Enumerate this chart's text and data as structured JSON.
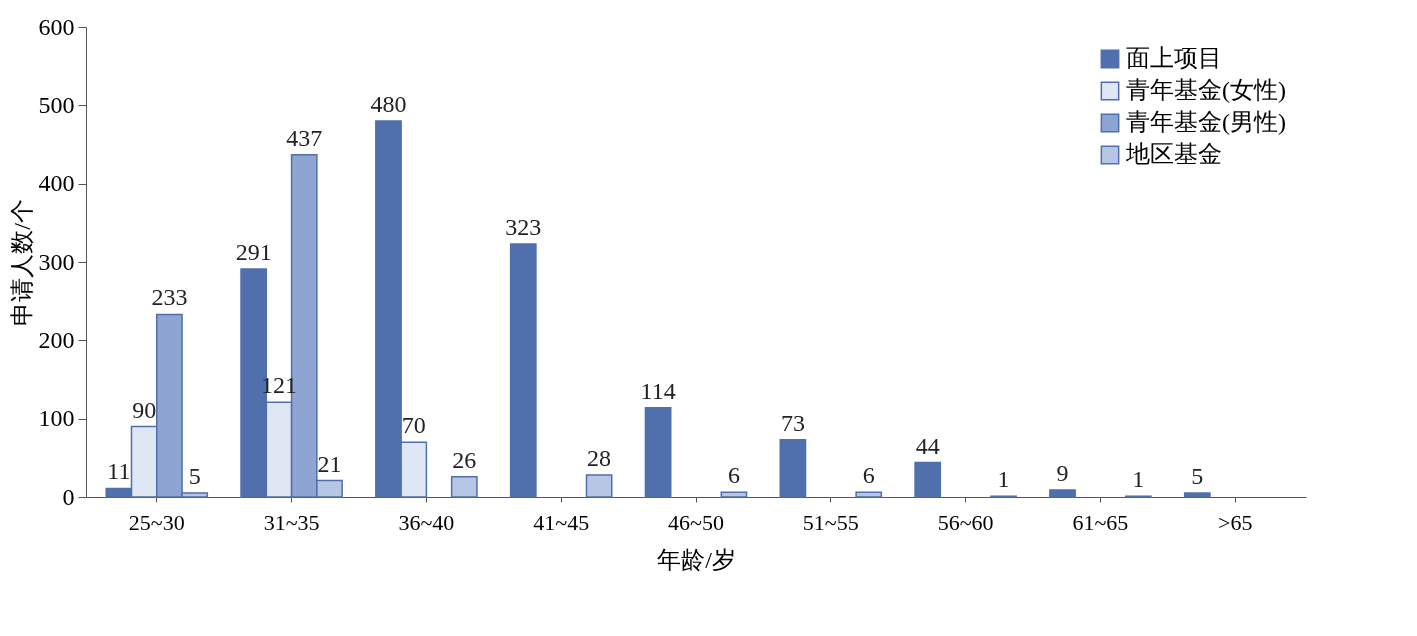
{
  "chart_data": {
    "type": "bar",
    "xlabel": "年龄/岁",
    "ylabel": "申请人数/个",
    "categories": [
      "25~30",
      "31~35",
      "36~40",
      "41~45",
      "46~50",
      "51~55",
      "56~60",
      "61~65",
      ">65"
    ],
    "series": [
      {
        "name": "面上项目",
        "color": "#4f6fad",
        "values": [
          11,
          291,
          480,
          323,
          114,
          73,
          44,
          9,
          5
        ]
      },
      {
        "name": "青年基金(女性)",
        "color": "#dfe6f4",
        "values": [
          90,
          121,
          70,
          null,
          null,
          null,
          null,
          null,
          null
        ]
      },
      {
        "name": "青年基金(男性)",
        "color": "#8ea4d2",
        "values": [
          233,
          437,
          null,
          null,
          null,
          null,
          null,
          null,
          null
        ]
      },
      {
        "name": "地区基金",
        "color": "#b7c6e4",
        "values": [
          5,
          21,
          26,
          28,
          6,
          6,
          1,
          1,
          null
        ]
      }
    ],
    "ylim": [
      0,
      600
    ],
    "yticks": [
      0,
      100,
      200,
      300,
      400,
      500,
      600
    ],
    "grid": false,
    "legend": "top right",
    "data_labels": true
  }
}
